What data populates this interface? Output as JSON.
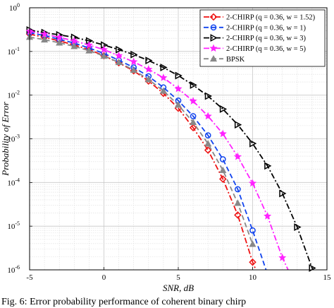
{
  "chart_data": {
    "type": "line",
    "xlabel": "SNR, dB",
    "ylabel": "Probability of Error",
    "xlim": [
      -5,
      15
    ],
    "ylim": [
      1e-06,
      1
    ],
    "yscale": "log",
    "grid": true,
    "legend_position": "top-right",
    "x_ticks": [
      "-5",
      "0",
      "5",
      "10",
      "15"
    ],
    "y_ticks": [
      {
        "base": "10",
        "exp": "0"
      },
      {
        "base": "10",
        "exp": "-1"
      },
      {
        "base": "10",
        "exp": "-2"
      },
      {
        "base": "10",
        "exp": "-3"
      },
      {
        "base": "10",
        "exp": "-4"
      },
      {
        "base": "10",
        "exp": "-5"
      },
      {
        "base": "10",
        "exp": "-6"
      }
    ],
    "series": [
      {
        "name": "2-CHIRP (q = 0.36, w = 1.52)",
        "color": "#ee1111",
        "dash": "dashdot",
        "marker": "diamond",
        "x": [
          -5,
          -4,
          -3,
          -2,
          -1,
          0,
          1,
          2,
          3,
          4,
          5,
          6,
          7,
          8,
          9,
          10,
          10.5
        ],
        "y": [
          0.25,
          0.21,
          0.175,
          0.14,
          0.11,
          0.08,
          0.055,
          0.036,
          0.021,
          0.011,
          0.005,
          0.0018,
          0.00055,
          0.00012,
          1.8e-05,
          1.5e-06,
          3e-07
        ]
      },
      {
        "name": "2-CHIRP (q = 0.36, w = 1)",
        "color": "#1144ee",
        "dash": "dash",
        "marker": "circle",
        "x": [
          -5,
          -4,
          -3,
          -2,
          -1,
          0,
          1,
          2,
          3,
          4,
          5,
          6,
          7,
          8,
          9,
          10,
          11,
          11.6
        ],
        "y": [
          0.27,
          0.23,
          0.19,
          0.155,
          0.12,
          0.09,
          0.063,
          0.043,
          0.027,
          0.015,
          0.0075,
          0.0033,
          0.0012,
          0.00034,
          7e-05,
          8e-06,
          8e-07,
          2e-07
        ]
      },
      {
        "name": "2-CHIRP (q = 0.36, w = 3)",
        "color": "#000000",
        "dash": "dashdot",
        "marker": "triangle-right",
        "x": [
          -5,
          -4,
          -3,
          -2,
          -1,
          0,
          1,
          2,
          3,
          4,
          5,
          6,
          7,
          8,
          9,
          10,
          11,
          12,
          13,
          14,
          14.4
        ],
        "y": [
          0.31,
          0.27,
          0.24,
          0.21,
          0.175,
          0.14,
          0.11,
          0.085,
          0.062,
          0.043,
          0.028,
          0.017,
          0.0095,
          0.0048,
          0.0021,
          0.00078,
          0.00024,
          5.6e-05,
          9.5e-06,
          1.1e-06,
          4e-07
        ]
      },
      {
        "name": "2-CHIRP (q = 0.36, w = 5)",
        "color": "#ff22ff",
        "dash": "dashdot",
        "marker": "star",
        "x": [
          -5,
          -4,
          -3,
          -2,
          -1,
          0,
          1,
          2,
          3,
          4,
          5,
          6,
          7,
          8,
          9,
          10,
          11,
          12,
          12.7
        ],
        "y": [
          0.29,
          0.25,
          0.21,
          0.175,
          0.14,
          0.11,
          0.08,
          0.058,
          0.039,
          0.025,
          0.014,
          0.0073,
          0.0033,
          0.0013,
          0.00039,
          9.6e-05,
          1.7e-05,
          1.9e-06,
          3e-07
        ]
      },
      {
        "name": "BPSK",
        "color": "#888888",
        "dash": "dash",
        "marker": "triangle-up",
        "x": [
          -5,
          -4,
          -3,
          -2,
          -1,
          0,
          1,
          2,
          3,
          4,
          5,
          6,
          7,
          8,
          9,
          10
        ],
        "y": [
          0.213,
          0.186,
          0.158,
          0.131,
          0.104,
          0.0786,
          0.0563,
          0.0375,
          0.0229,
          0.0125,
          0.00595,
          0.00239,
          0.000773,
          0.000191,
          3.36e-05,
          3.87e-06
        ]
      }
    ]
  },
  "caption": "Fig. 6: Error probability performance of coherent binary chirp"
}
